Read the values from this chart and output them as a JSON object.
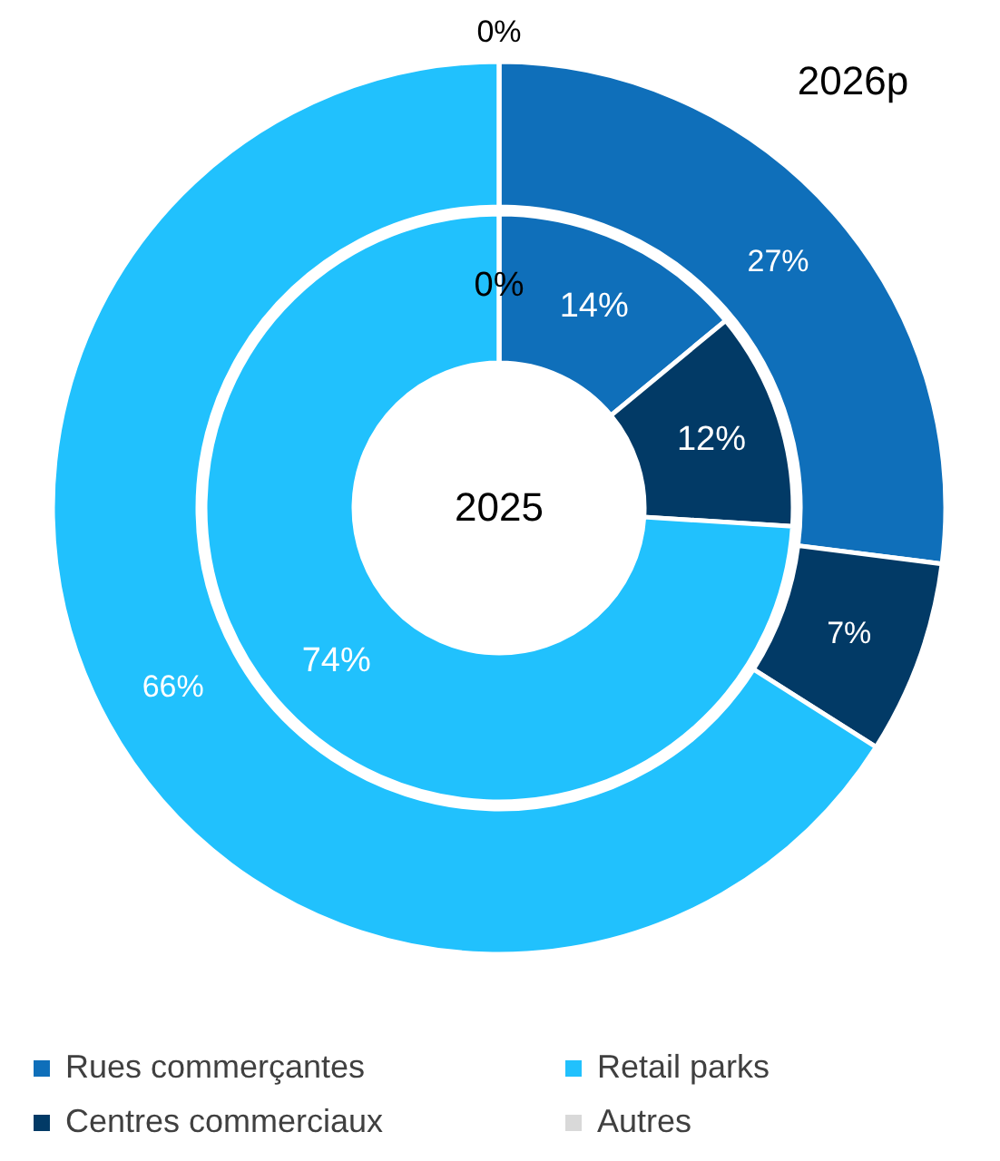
{
  "chart_data": {
    "type": "donut",
    "categories": [
      "Rues commerçantes",
      "Centres commerciaux",
      "Retail parks",
      "Autres"
    ],
    "colors": [
      "#0f6fba",
      "#023a66",
      "#21c1fd",
      "#d9d9d9"
    ],
    "series": [
      {
        "name": "2025",
        "values": [
          14,
          12,
          74,
          0
        ],
        "value_labels": [
          "14%",
          "12%",
          "74%",
          "0%"
        ]
      },
      {
        "name": "2026p",
        "values": [
          27,
          7,
          66,
          0
        ],
        "value_labels": [
          "27%",
          "7%",
          "66%",
          "0%"
        ]
      }
    ],
    "legend": "bottom"
  }
}
